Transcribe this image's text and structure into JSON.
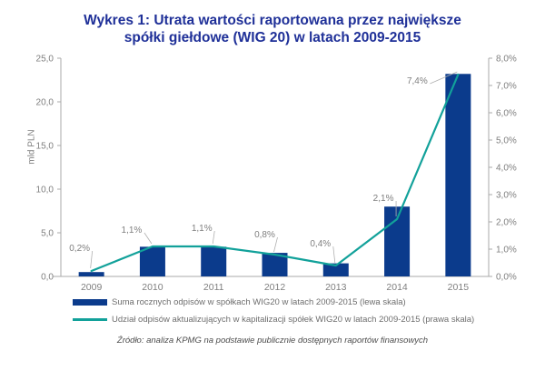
{
  "title": {
    "lines": [
      "Wykres 1: Utrata wartości raportowana przez największe",
      "spółki giełdowe (WIG 20) w latach 2009-2015"
    ]
  },
  "chart_data": {
    "type": "bar+line",
    "categories": [
      "2009",
      "2010",
      "2011",
      "2012",
      "2013",
      "2014",
      "2015"
    ],
    "series": [
      {
        "name": "Suma rocznych odpisów w spółkach WIG20 w latach 2009-2015 (lewa skala)",
        "type": "bar",
        "axis": "left",
        "values": [
          0.5,
          3.4,
          3.4,
          2.7,
          1.5,
          8.0,
          23.2
        ]
      },
      {
        "name": "Udział odpisów aktualizujących w kapitalizacji spółek WIG20 w latach 2009-2015 (prawa skala)",
        "type": "line",
        "axis": "right",
        "values": [
          0.2,
          1.1,
          1.1,
          0.8,
          0.4,
          2.1,
          7.4
        ],
        "point_labels": [
          "0,2%",
          "1,1%",
          "1,1%",
          "0,8%",
          "0,4%",
          "2,1%",
          "7,4%"
        ]
      }
    ],
    "left_axis": {
      "label": "mld PLN",
      "ticks": [
        "0,0",
        "5,0",
        "10,0",
        "15,0",
        "20,0",
        "25,0"
      ],
      "ylim": [
        0,
        25
      ]
    },
    "right_axis": {
      "ticks": [
        "0,0%",
        "1,0%",
        "2,0%",
        "3,0%",
        "4,0%",
        "5,0%",
        "6,0%",
        "7,0%",
        "8,0%"
      ],
      "ylim": [
        0,
        8
      ]
    },
    "grid": false,
    "legend_position": "bottom-left"
  },
  "source": "Źródło: analiza KPMG na podstawie publicznie dostępnych raportów finansowych",
  "colors": {
    "title": "#1F3098",
    "bar": "#0B3B8C",
    "line": "#12A19A",
    "axis": "#A9A9A9",
    "tick_text": "#7F7F7F",
    "data_label": "#7F7F7F",
    "leader": "#B0B0B0",
    "legend_text": "#6E6E6E",
    "source_text": "#4D4D4D"
  }
}
